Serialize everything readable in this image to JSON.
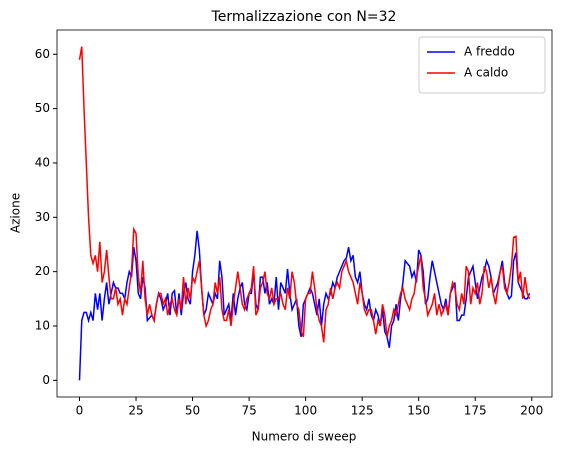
{
  "chart_data": {
    "type": "line",
    "title": "Termalizzazione con N=32",
    "xlabel": "Numero di sweep",
    "ylabel": "Azione",
    "x": [
      0,
      1,
      2,
      3,
      4,
      5,
      6,
      7,
      8,
      9,
      10,
      11,
      12,
      13,
      14,
      15,
      16,
      17,
      18,
      19,
      20,
      21,
      22,
      23,
      24,
      25,
      26,
      27,
      28,
      29,
      30,
      31,
      32,
      33,
      34,
      35,
      36,
      37,
      38,
      39,
      40,
      41,
      42,
      43,
      44,
      45,
      46,
      47,
      48,
      49,
      50,
      51,
      52,
      53,
      54,
      55,
      56,
      57,
      58,
      59,
      60,
      61,
      62,
      63,
      64,
      65,
      66,
      67,
      68,
      69,
      70,
      71,
      72,
      73,
      74,
      75,
      76,
      77,
      78,
      79,
      80,
      81,
      82,
      83,
      84,
      85,
      86,
      87,
      88,
      89,
      90,
      91,
      92,
      93,
      94,
      95,
      96,
      97,
      98,
      99,
      100,
      101,
      102,
      103,
      104,
      105,
      106,
      107,
      108,
      109,
      110,
      111,
      112,
      113,
      114,
      115,
      116,
      117,
      118,
      119,
      120,
      121,
      122,
      123,
      124,
      125,
      126,
      127,
      128,
      129,
      130,
      131,
      132,
      133,
      134,
      135,
      136,
      137,
      138,
      139,
      140,
      141,
      142,
      143,
      144,
      145,
      146,
      147,
      148,
      149,
      150,
      151,
      152,
      153,
      154,
      155,
      156,
      157,
      158,
      159,
      160,
      161,
      162,
      163,
      164,
      165,
      166,
      167,
      168,
      169,
      170,
      171,
      172,
      173,
      174,
      175,
      176,
      177,
      178,
      179,
      180,
      181,
      182,
      183,
      184,
      185,
      186,
      187,
      188,
      189,
      190,
      191,
      192,
      193,
      194,
      195,
      196,
      197,
      198,
      199
    ],
    "series": [
      {
        "name": "A freddo",
        "color": "#0000ff",
        "values": [
          0,
          11,
          12.5,
          12.5,
          11,
          12.5,
          11,
          16,
          13,
          16,
          11,
          15,
          18,
          14,
          16,
          18,
          17,
          17,
          16,
          16,
          15,
          18,
          20,
          19,
          24.5,
          22,
          16,
          15,
          19,
          17,
          11,
          11.5,
          12,
          11,
          14,
          16,
          15,
          13,
          14,
          16,
          12,
          16,
          16.5,
          12,
          16,
          12,
          16,
          18,
          15,
          14,
          20,
          23,
          27.5,
          24,
          17,
          12,
          13,
          16,
          15,
          14,
          16,
          15,
          22,
          19,
          12,
          13,
          14,
          11,
          16,
          12,
          15,
          17,
          18,
          14,
          13,
          16,
          16,
          20,
          14,
          13,
          19,
          19,
          16,
          18,
          14,
          15,
          14,
          19,
          13,
          18,
          17,
          16,
          20.5,
          16,
          13,
          14,
          15,
          10,
          8,
          14,
          15,
          16,
          17,
          16,
          14,
          12,
          15,
          10,
          14,
          16,
          15,
          16,
          18,
          17,
          19,
          20,
          21,
          22,
          22.5,
          24.5,
          22,
          23,
          19,
          18,
          20,
          16,
          14,
          13,
          15,
          12,
          11,
          13,
          12,
          10,
          13,
          9,
          8,
          6,
          10,
          11,
          14,
          11,
          15,
          18,
          22,
          21.5,
          21,
          19,
          20,
          18,
          24,
          23,
          20,
          14,
          15,
          19,
          22,
          20,
          18,
          16,
          14,
          13,
          15,
          12,
          16,
          17,
          18,
          11,
          11,
          12,
          12,
          15,
          19,
          20,
          21,
          18,
          15,
          17,
          19,
          20,
          22,
          21,
          19,
          16,
          17,
          18,
          20,
          22,
          18,
          16,
          15,
          15.5,
          22,
          23.5,
          18,
          17,
          16,
          15,
          15,
          16
        ]
      },
      {
        "name": "A caldo",
        "color": "#ff0000",
        "values": [
          59,
          61.4,
          50,
          40,
          30,
          23,
          21.5,
          23,
          20,
          25.5,
          18,
          20,
          24,
          19,
          15,
          15,
          17,
          14,
          15,
          12,
          15,
          14,
          17,
          20,
          27.8,
          27,
          19,
          16,
          22,
          15,
          12,
          14,
          12,
          11,
          14,
          16,
          16,
          14,
          15,
          12,
          14,
          15,
          13,
          12,
          15,
          13,
          19,
          14,
          17,
          15,
          19,
          18,
          20,
          22,
          17,
          12,
          10,
          11,
          13,
          14,
          18,
          16,
          19,
          13,
          11,
          11,
          13,
          10,
          14,
          17,
          20,
          17,
          14,
          13,
          15,
          16,
          17,
          21,
          12,
          13,
          17,
          18,
          20,
          16,
          15,
          17,
          14,
          15,
          15,
          16,
          14,
          13,
          17,
          15,
          20,
          18,
          14,
          13,
          9,
          8,
          15,
          16,
          16,
          20,
          17,
          13,
          11,
          10,
          7,
          13,
          14,
          17,
          15,
          17,
          18,
          17,
          20,
          21,
          22,
          20,
          19,
          18,
          16,
          14,
          18,
          16,
          13,
          12,
          13,
          13,
          11,
          8.5,
          11,
          10,
          14,
          12,
          8,
          10,
          11,
          13,
          12,
          14,
          16,
          17,
          15,
          14,
          13,
          15,
          16,
          19,
          21,
          23,
          17,
          15,
          12,
          13,
          14,
          16,
          12,
          14,
          12,
          13,
          14,
          12,
          16,
          18,
          17,
          14,
          13,
          16,
          14,
          21,
          20,
          14,
          17,
          16,
          18,
          14,
          16,
          21,
          20,
          17,
          19,
          16,
          14,
          17,
          20,
          21,
          17,
          16,
          18,
          21,
          26.3,
          26.5,
          18,
          20,
          15,
          19,
          16,
          15
        ]
      }
    ],
    "xlim": [
      -9.95,
      208.95
    ],
    "xticks": [
      0,
      25,
      50,
      75,
      100,
      125,
      150,
      175,
      200
    ],
    "ylim": [
      -3.07,
      64.47
    ],
    "yticks": [
      0,
      10,
      20,
      30,
      40,
      50,
      60
    ],
    "legend": "upper right"
  }
}
